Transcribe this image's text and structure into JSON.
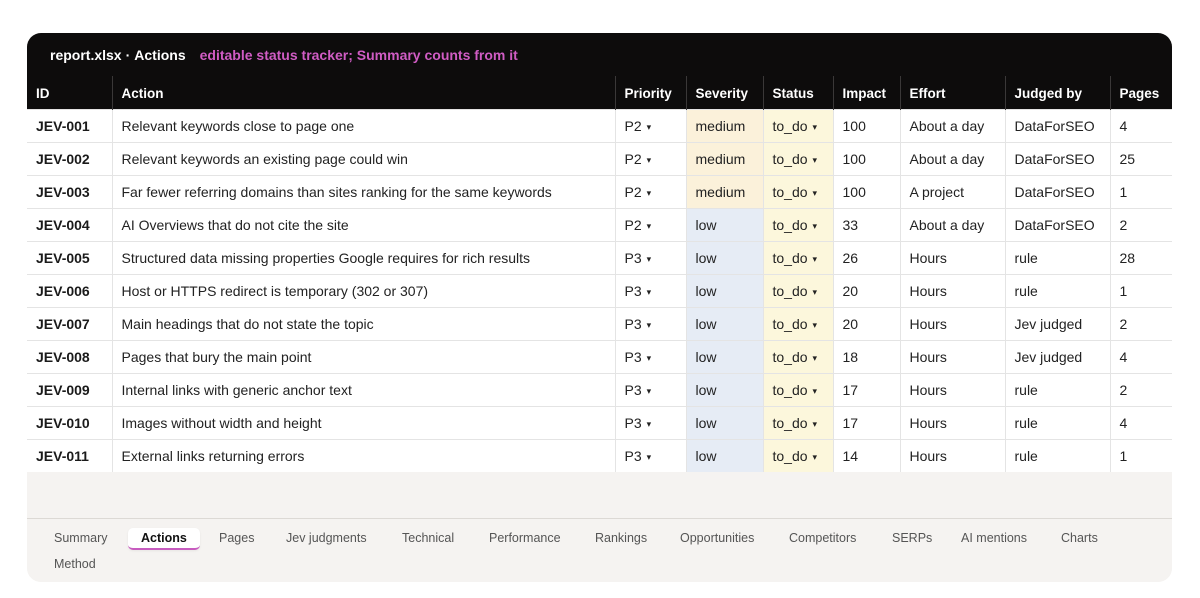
{
  "titlebar": {
    "file": "report.xlsx",
    "separator": "·",
    "sheet": "Actions",
    "note": "editable status tracker; Summary counts from it"
  },
  "columns": [
    "ID",
    "Action",
    "Priority",
    "Severity",
    "Status",
    "Impact",
    "Effort",
    "Judged by",
    "Pages"
  ],
  "rows": [
    {
      "id": "JEV-001",
      "action": "Relevant keywords close to page one",
      "priority": "P2",
      "severity": "medium",
      "status": "to_do",
      "impact": "100",
      "effort": "About a day",
      "judged_by": "DataForSEO",
      "pages": "4"
    },
    {
      "id": "JEV-002",
      "action": "Relevant keywords an existing page could win",
      "priority": "P2",
      "severity": "medium",
      "status": "to_do",
      "impact": "100",
      "effort": "About a day",
      "judged_by": "DataForSEO",
      "pages": "25"
    },
    {
      "id": "JEV-003",
      "action": "Far fewer referring domains than sites ranking for the same keywords",
      "priority": "P2",
      "severity": "medium",
      "status": "to_do",
      "impact": "100",
      "effort": "A project",
      "judged_by": "DataForSEO",
      "pages": "1"
    },
    {
      "id": "JEV-004",
      "action": "AI Overviews that do not cite the site",
      "priority": "P2",
      "severity": "low",
      "status": "to_do",
      "impact": "33",
      "effort": "About a day",
      "judged_by": "DataForSEO",
      "pages": "2"
    },
    {
      "id": "JEV-005",
      "action": "Structured data missing properties Google requires for rich results",
      "priority": "P3",
      "severity": "low",
      "status": "to_do",
      "impact": "26",
      "effort": "Hours",
      "judged_by": "rule",
      "pages": "28"
    },
    {
      "id": "JEV-006",
      "action": "Host or HTTPS redirect is temporary (302 or 307)",
      "priority": "P3",
      "severity": "low",
      "status": "to_do",
      "impact": "20",
      "effort": "Hours",
      "judged_by": "rule",
      "pages": "1"
    },
    {
      "id": "JEV-007",
      "action": "Main headings that do not state the topic",
      "priority": "P3",
      "severity": "low",
      "status": "to_do",
      "impact": "20",
      "effort": "Hours",
      "judged_by": "Jev judged",
      "pages": "2"
    },
    {
      "id": "JEV-008",
      "action": "Pages that bury the main point",
      "priority": "P3",
      "severity": "low",
      "status": "to_do",
      "impact": "18",
      "effort": "Hours",
      "judged_by": "Jev judged",
      "pages": "4"
    },
    {
      "id": "JEV-009",
      "action": "Internal links with generic anchor text",
      "priority": "P3",
      "severity": "low",
      "status": "to_do",
      "impact": "17",
      "effort": "Hours",
      "judged_by": "rule",
      "pages": "2"
    },
    {
      "id": "JEV-010",
      "action": "Images without width and height",
      "priority": "P3",
      "severity": "low",
      "status": "to_do",
      "impact": "17",
      "effort": "Hours",
      "judged_by": "rule",
      "pages": "4"
    },
    {
      "id": "JEV-011",
      "action": "External links returning errors",
      "priority": "P3",
      "severity": "low",
      "status": "to_do",
      "impact": "14",
      "effort": "Hours",
      "judged_by": "rule",
      "pages": "1"
    }
  ],
  "dropdown_caret": "▾",
  "tabs": [
    "Summary",
    "Actions",
    "Pages",
    "Jev judgments",
    "Technical",
    "Performance",
    "Rankings",
    "Opportunities",
    "Competitors",
    "SERPs",
    "AI mentions",
    "Charts",
    "Method"
  ],
  "active_tab": "Actions",
  "colors": {
    "header_bg": "#0d0c0c",
    "note_accent": "#d05cc4",
    "severity_medium": "#fbf1da",
    "severity_low": "#e6ecf5",
    "status_bg": "#fcf7dc",
    "active_tab_underline": "#c75bbf"
  }
}
